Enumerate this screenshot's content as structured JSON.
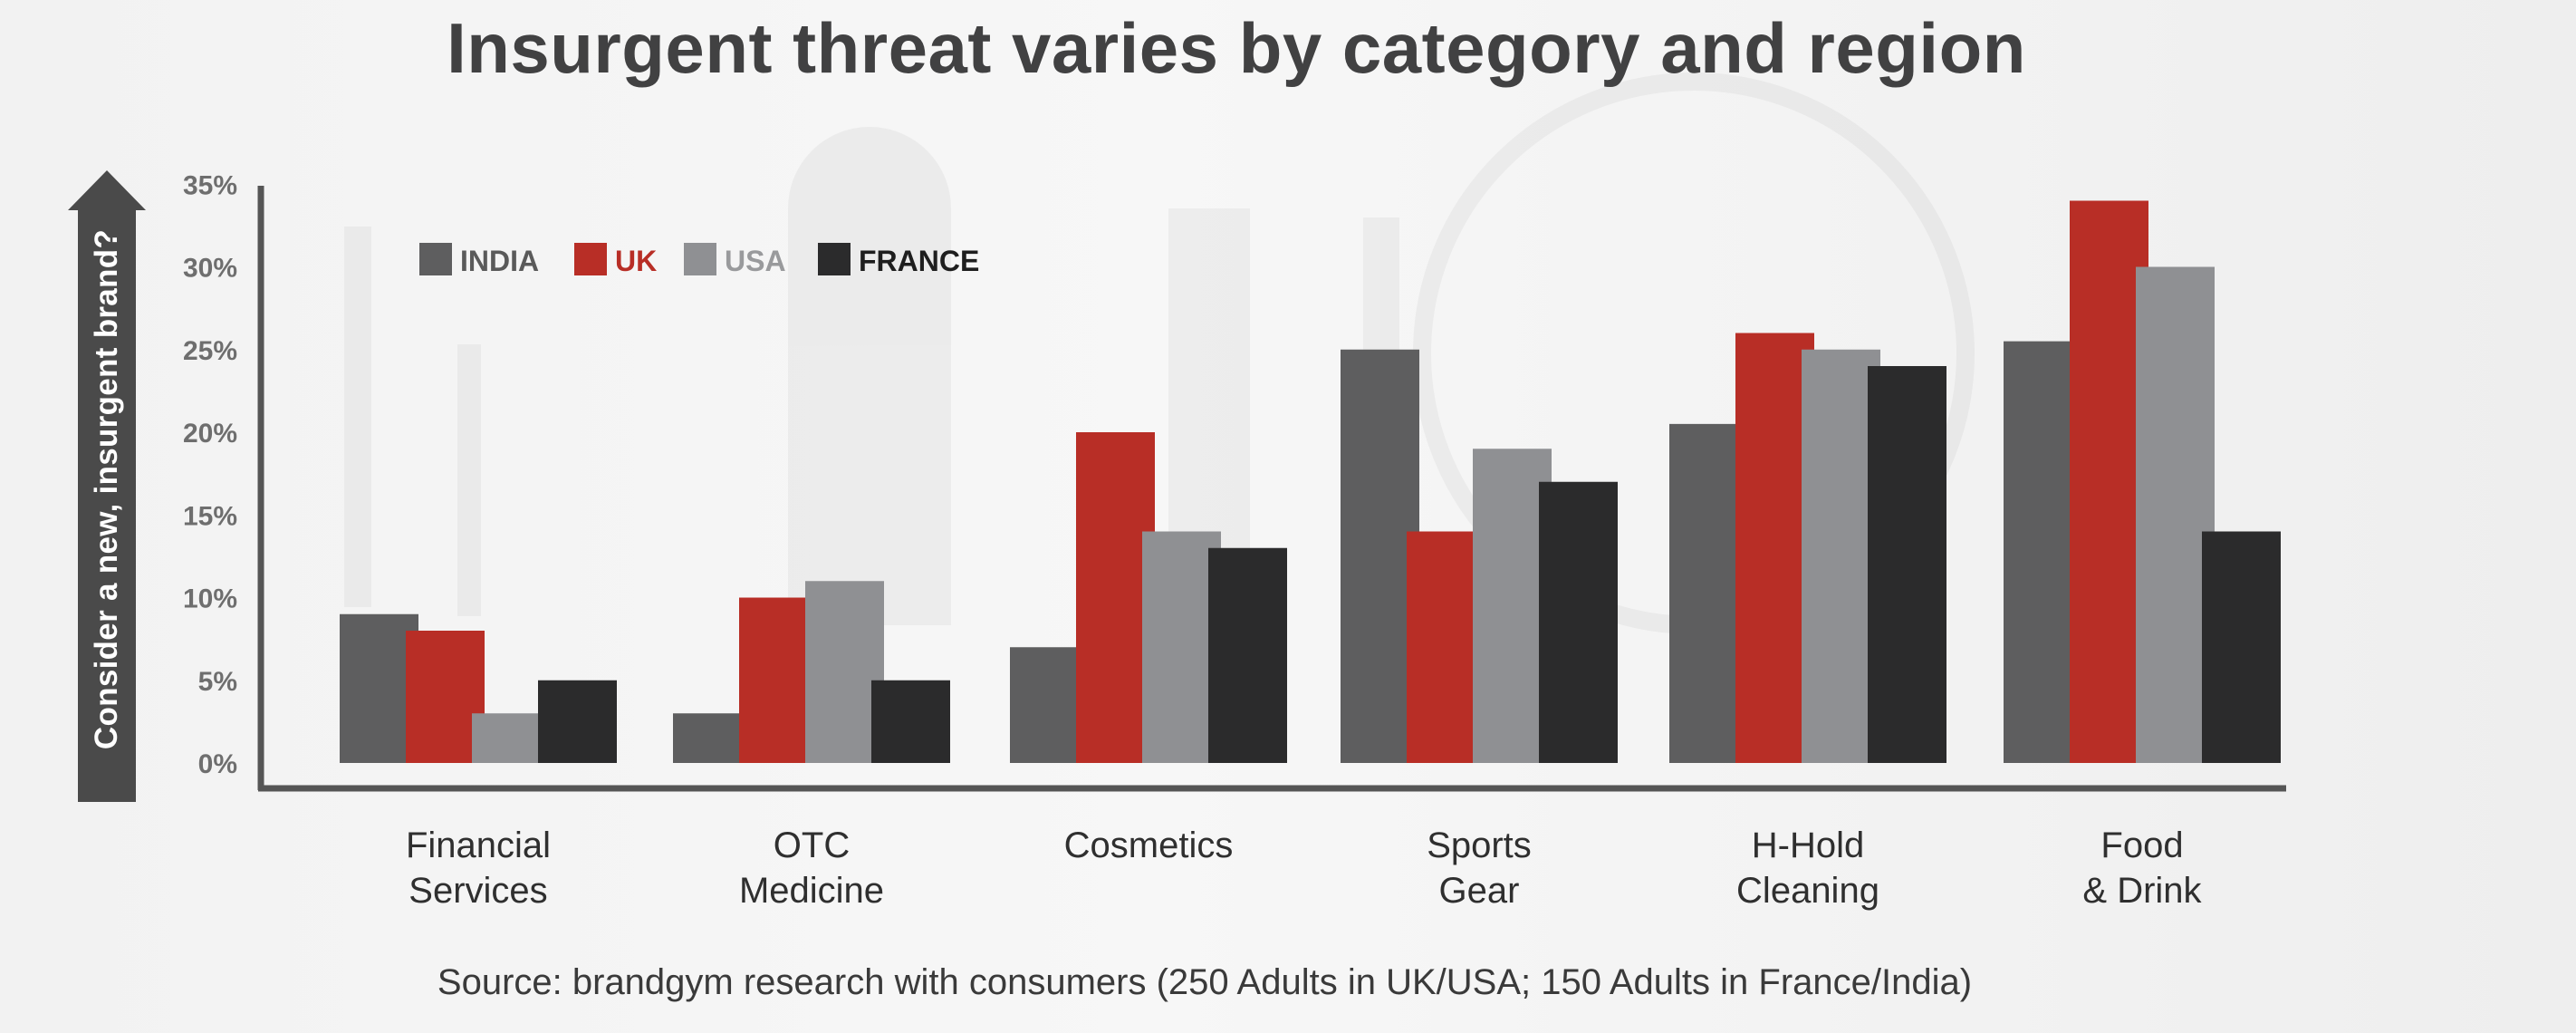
{
  "title": "Insurgent threat varies by category and region",
  "source": "Source: brandgym research with consumers (250 Adults in UK/USA; 150 Adults in France/India)",
  "colors": {
    "INDIA": "#5e5e5f",
    "UK": "#b82e26",
    "USA": "#8f9093",
    "FRANCE": "#2b2b2c",
    "axis": "#555555",
    "arrow": "#4a4a4a",
    "tick_text": "#6e6e6e",
    "category_text": "#2f2f2f"
  },
  "chart_data": {
    "type": "bar",
    "title": "Insurgent threat varies by category and region",
    "ylabel": "Consider a new, insurgent brand?",
    "xlabel": "",
    "ylim": [
      0,
      35
    ],
    "yticks": [
      "0%",
      "5%",
      "10%",
      "15%",
      "20%",
      "25%",
      "30%",
      "35%"
    ],
    "legend_position": "top-left",
    "categories": [
      [
        "Financial",
        "Services"
      ],
      [
        "OTC",
        "Medicine"
      ],
      [
        "Cosmetics"
      ],
      [
        "Sports",
        "Gear"
      ],
      [
        "H-Hold",
        "Cleaning"
      ],
      [
        "Food",
        "& Drink"
      ]
    ],
    "series": [
      {
        "name": "INDIA",
        "values": [
          9,
          3,
          7,
          25,
          20.5,
          25.5
        ]
      },
      {
        "name": "UK",
        "values": [
          8,
          10,
          20,
          14,
          26,
          34
        ]
      },
      {
        "name": "USA",
        "values": [
          3,
          11,
          14,
          19,
          25,
          30
        ]
      },
      {
        "name": "FRANCE",
        "values": [
          5,
          5,
          13,
          17,
          24,
          14
        ]
      }
    ]
  }
}
